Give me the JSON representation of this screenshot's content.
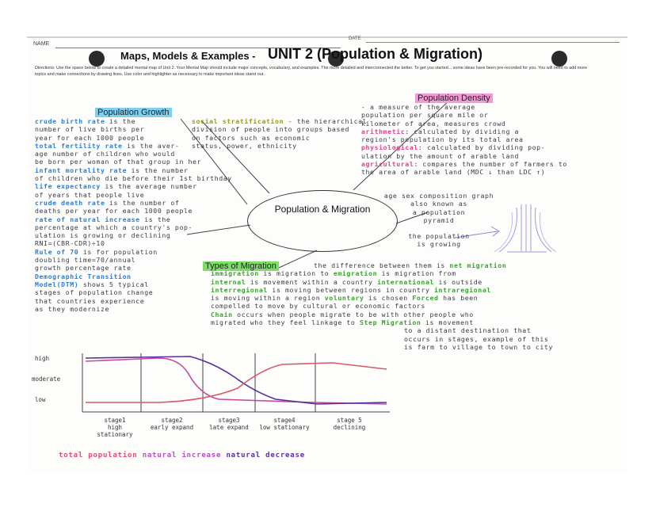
{
  "header": {
    "name_label": "NAME",
    "date_label": "DATE",
    "title_prefix": "Maps, Models & Examples -",
    "title_main": "UNIT 2 (Population & Migration)",
    "directions": "Directions: Use the space below to create a detailed mental map of Unit 2. Your Mental Map should include major concepts, vocabulary, and examples. The more detailed and interconnected the better. To get you started... some ideas have been pre-recorded for you. You will need to add more topics and make connections by drawing lines. Use color and highlighter as necessary to make important ideas stand out."
  },
  "center": {
    "label": "Population & Migration"
  },
  "growth": {
    "heading": "Population Growth",
    "lines": [
      {
        "term": "crude birth rate",
        "text": " is the"
      },
      {
        "term": "",
        "text": "number of live births per"
      },
      {
        "term": "",
        "text": "year for each 1000 people"
      },
      {
        "term": "total fertility rate",
        "text": " is the aver-"
      },
      {
        "term": "",
        "text": "age number of children who would"
      },
      {
        "term": "",
        "text": "be born per woman of that group in her"
      },
      {
        "term": "infant mortality rate",
        "text": " is the number"
      },
      {
        "term": "",
        "text": "of children who die before their 1st birthday"
      },
      {
        "term": "life expectancy",
        "text": " is the average number"
      },
      {
        "term": "",
        "text": "of years that people live"
      },
      {
        "term": "crude death rate",
        "text": " is the number of"
      },
      {
        "term": "",
        "text": "deaths per year for each 1000 people"
      },
      {
        "term": "rate of natural increase",
        "text": " is the"
      },
      {
        "term": "",
        "text": "percentage at which a country's pop-"
      },
      {
        "term": "",
        "text": "ulation is growing or declining"
      },
      {
        "term": "",
        "text": "RNI=(CBR-CDR)÷10"
      },
      {
        "term": "Rule of 70",
        "text": " is for population"
      },
      {
        "term": "",
        "text": "doubling time=70/annual"
      },
      {
        "term": "",
        "text": "growth percentage rate"
      },
      {
        "term": "Demographic Transition",
        "text": ""
      },
      {
        "term": "Model(DTM)",
        "text": " shows 5 typical"
      },
      {
        "term": "",
        "text": "stages of population change"
      },
      {
        "term": "",
        "text": "that countries experience"
      },
      {
        "term": "",
        "text": "as they modernize"
      }
    ]
  },
  "stratification": {
    "lines": [
      {
        "term": "social stratification",
        "text": " - the hierarchical"
      },
      {
        "term": "",
        "text": "division of people into groups based"
      },
      {
        "term": "",
        "text": "on factors such as economic"
      },
      {
        "term": "",
        "text": "status, power, ethnicity"
      }
    ]
  },
  "density": {
    "heading": "Population Density",
    "lines": [
      {
        "term": "",
        "text": "- a measure of the average"
      },
      {
        "term": "",
        "text": "population per square mile or"
      },
      {
        "term": "",
        "text": "kilometer of area, measures crowd"
      },
      {
        "term": "arithmetic",
        "text": ": calculated by dividing a"
      },
      {
        "term": "",
        "text": "region's population by its total area"
      },
      {
        "term": "physiological",
        "text": ": calculated by dividing pop-"
      },
      {
        "term": "",
        "text": "ulation by the amount of arable land"
      },
      {
        "term": "agricultural",
        "text": ": compares the number of farmers to"
      },
      {
        "term": "",
        "text": "the area of arable land (MDC ↓ than LDC ↑)"
      }
    ]
  },
  "pyramid": {
    "lines": [
      "age sex composition graph",
      "also known as",
      "a population",
      "pyramid",
      "the population",
      "is growing"
    ]
  },
  "migration": {
    "heading": "Types of Migration",
    "lines": [
      {
        "parts": [
          [
            "",
            "the difference between them is "
          ],
          [
            "g",
            "net migration"
          ]
        ]
      },
      {
        "parts": [
          [
            "g",
            "immigration"
          ],
          [
            "",
            " is migration to "
          ],
          [
            "g",
            "emigration"
          ],
          [
            "",
            " is migration from"
          ]
        ]
      },
      {
        "parts": [
          [
            "g",
            "internal"
          ],
          [
            "",
            " is movement within a country "
          ],
          [
            "g",
            "international"
          ],
          [
            "",
            " is outside"
          ]
        ]
      },
      {
        "parts": [
          [
            "g",
            "interregional"
          ],
          [
            "",
            " is moving between regions in country "
          ],
          [
            "g",
            "intraregional"
          ]
        ]
      },
      {
        "parts": [
          [
            "",
            "is moving within a region "
          ],
          [
            "g",
            "voluntary"
          ],
          [
            "",
            " is chosen "
          ],
          [
            "g",
            "Forced"
          ],
          [
            "",
            " has been"
          ]
        ]
      },
      {
        "parts": [
          [
            "",
            "compelled to move by cultural or economic factors"
          ]
        ]
      },
      {
        "parts": [
          [
            "g",
            "Chain"
          ],
          [
            "",
            " occurs when people migrate to be with other people who"
          ]
        ]
      },
      {
        "parts": [
          [
            "",
            "migrated who they feel linkage to "
          ],
          [
            "g",
            "Step Migration"
          ],
          [
            "",
            " is movement"
          ]
        ]
      },
      {
        "parts": [
          [
            "",
            "to a distant destination that"
          ]
        ]
      },
      {
        "parts": [
          [
            "",
            "occurs in stages, example of this"
          ]
        ]
      },
      {
        "parts": [
          [
            "",
            "is farm to village to town to city"
          ]
        ]
      }
    ]
  },
  "dtm": {
    "y_labels": [
      "high",
      "moderate",
      "low"
    ],
    "stages": [
      {
        "name": "stage1",
        "sub": "high stationary"
      },
      {
        "name": "stage2",
        "sub": "early expand"
      },
      {
        "name": "stage3",
        "sub": "late expand"
      },
      {
        "name": "stage4",
        "sub": "low stationary"
      },
      {
        "name": "stage 5",
        "sub": "declining"
      }
    ],
    "legend": [
      {
        "label": "total population",
        "color": "#e04a7a"
      },
      {
        "label": "natural increase",
        "color": "#b44fc4"
      },
      {
        "label": "natural decrease",
        "color": "#5a2f9e"
      }
    ],
    "colors": {
      "total": "#d65a6a",
      "birth": "#8a3fb4",
      "death": "#c44aa0"
    }
  }
}
